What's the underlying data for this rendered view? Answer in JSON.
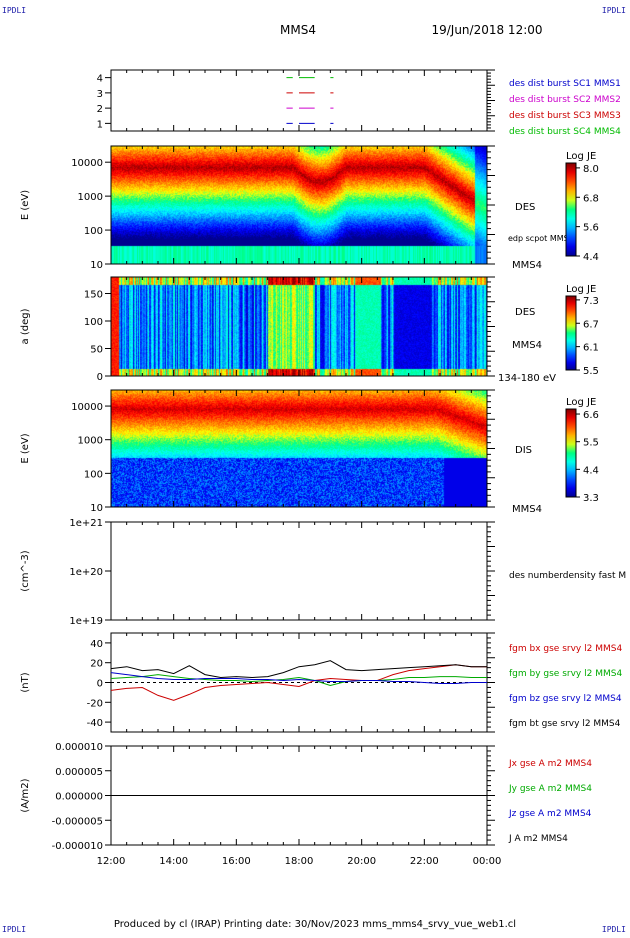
{
  "header": {
    "corner_left": "IPDLI",
    "corner_right": "IPDLI",
    "title": "MMS4",
    "date": "19/Jun/2018 12:00"
  },
  "footer": {
    "text": "Produced by cl (IRAP)   Printing date: 30/Nov/2023   mms_mms4_srvy_vue_web1.cl",
    "corner_left": "IPDLI",
    "corner_right": "IPDLI"
  },
  "x_axis": {
    "ticks": [
      "12:00",
      "14:00",
      "16:00",
      "18:00",
      "20:00",
      "22:00",
      "00:00"
    ],
    "start_hour": 12,
    "end_hour": 24
  },
  "colors": {
    "mms1": "#0000cc",
    "mms2": "#cc00cc",
    "mms3": "#cc0000",
    "mms4": "#00bb00",
    "bx": "#cc0000",
    "by": "#00aa00",
    "bz": "#0000cc",
    "bt": "#000000"
  },
  "chart_data": [
    {
      "type": "bar",
      "id": "burst",
      "yticks": [
        "4",
        "3",
        "2",
        "1"
      ],
      "ylim": [
        0.5,
        4.5
      ],
      "legend": [
        "des dist burst SC1 MMS1",
        "des dist burst SC2 MMS2",
        "des dist burst SC3 MMS3",
        "des dist burst SC4 MMS4"
      ],
      "series": [
        {
          "name": "des dist burst SC1 MMS1",
          "level": 1,
          "segments": [
            [
              17.6,
              17.8
            ],
            [
              18.0,
              18.5
            ],
            [
              19.0,
              19.1
            ]
          ]
        },
        {
          "name": "des dist burst SC2 MMS2",
          "level": 2,
          "segments": [
            [
              17.6,
              17.8
            ],
            [
              18.0,
              18.5
            ],
            [
              19.0,
              19.1
            ]
          ]
        },
        {
          "name": "des dist burst SC3 MMS3",
          "level": 3,
          "segments": [
            [
              17.6,
              17.8
            ],
            [
              18.0,
              18.5
            ],
            [
              19.0,
              19.1
            ]
          ]
        },
        {
          "name": "des dist burst SC4 MMS4",
          "level": 4,
          "segments": [
            [
              17.6,
              17.8
            ],
            [
              18.0,
              18.5
            ],
            [
              19.0,
              19.1
            ]
          ]
        }
      ]
    },
    {
      "type": "heatmap",
      "id": "des-energy",
      "ylabel": "E (eV)",
      "yscale": "log",
      "ylim": [
        10,
        30000
      ],
      "yticks": [
        "10000",
        "1000",
        "100",
        "10"
      ],
      "instrument": "DES",
      "label_low": "edp scpot MMS4",
      "spacecraft": "MMS4",
      "colorbar": {
        "title": "Log JE",
        "ticks": [
          "8.0",
          "6.8",
          "5.6",
          "4.4"
        ],
        "range": [
          4.4,
          8.2
        ]
      }
    },
    {
      "type": "heatmap",
      "id": "des-pitch",
      "ylabel": "a (deg)",
      "ylim": [
        0,
        180
      ],
      "yticks": [
        "150",
        "100",
        "50",
        "0"
      ],
      "instrument": "DES",
      "spacecraft": "MMS4",
      "energy_range": "134-180 eV",
      "colorbar": {
        "title": "Log JE",
        "ticks": [
          "7.3",
          "6.7",
          "6.1",
          "5.5"
        ],
        "range": [
          5.5,
          7.4
        ]
      }
    },
    {
      "type": "heatmap",
      "id": "dis-energy",
      "ylabel": "E (eV)",
      "yscale": "log",
      "ylim": [
        10,
        30000
      ],
      "yticks": [
        "10000",
        "1000",
        "100",
        "10"
      ],
      "instrument": "DIS",
      "spacecraft": "MMS4",
      "colorbar": {
        "title": "Log JE",
        "ticks": [
          "6.6",
          "5.5",
          "4.4",
          "3.3"
        ],
        "range": [
          3.3,
          6.8
        ]
      }
    },
    {
      "type": "line",
      "id": "density",
      "ylabel": "(cm^-3)",
      "yscale": "log",
      "ylim": [
        1e+19,
        1e+21
      ],
      "yticks": [
        "1e+21",
        "1e+20",
        "1e+19"
      ],
      "legend": [
        "des numberdensity fast M"
      ],
      "series": []
    },
    {
      "type": "line",
      "id": "fgm",
      "ylabel": "(nT)",
      "ylim": [
        -50,
        50
      ],
      "yticks": [
        "40",
        "20",
        "0",
        "-20",
        "-40"
      ],
      "legend": [
        "fgm bx gse srvy l2 MMS4",
        "fgm by gse srvy l2 MMS4",
        "fgm bz gse srvy l2 MMS4",
        "fgm bt gse srvy l2 MMS4"
      ],
      "x": [
        12.0,
        12.5,
        13.0,
        13.5,
        14.0,
        14.5,
        15.0,
        15.5,
        16.0,
        16.5,
        17.0,
        17.5,
        18.0,
        18.5,
        19.0,
        19.5,
        20.0,
        20.5,
        21.0,
        21.5,
        22.0,
        22.5,
        23.0,
        23.5,
        24.0
      ],
      "series": [
        {
          "name": "fgm bx gse srvy l2 MMS4",
          "values": [
            -8,
            -6,
            -5,
            -13,
            -18,
            -12,
            -5,
            -3,
            -2,
            -1,
            0,
            -2,
            -4,
            2,
            4,
            3,
            2,
            2,
            8,
            12,
            14,
            16,
            18,
            16,
            16
          ]
        },
        {
          "name": "fgm by gse srvy l2 MMS4",
          "values": [
            4,
            5,
            6,
            8,
            6,
            4,
            3,
            2,
            2,
            1,
            2,
            3,
            5,
            2,
            -3,
            1,
            2,
            2,
            3,
            5,
            5,
            6,
            6,
            5,
            5
          ]
        },
        {
          "name": "fgm bz gse srvy l2 MMS4",
          "values": [
            10,
            8,
            6,
            4,
            3,
            3,
            4,
            4,
            4,
            3,
            3,
            2,
            3,
            2,
            1,
            1,
            2,
            2,
            1,
            1,
            0,
            -1,
            -1,
            0,
            0
          ]
        },
        {
          "name": "fgm bt gse srvy l2 MMS4",
          "values": [
            14,
            16,
            12,
            13,
            9,
            17,
            8,
            5,
            6,
            5,
            6,
            10,
            16,
            18,
            22,
            13,
            12,
            13,
            14,
            15,
            16,
            17,
            18,
            16,
            16
          ]
        }
      ]
    },
    {
      "type": "line",
      "id": "current",
      "ylabel": "(A/m2)",
      "ylim": [
        -1e-05,
        1e-05
      ],
      "yticks": [
        "0.000010",
        "0.000005",
        "0.000000",
        "-0.000005",
        "-0.000010"
      ],
      "legend": [
        "Jx gse A m2 MMS4",
        "Jy gse A m2 MMS4",
        "Jz gse A m2 MMS4",
        "J A m2 MMS4"
      ],
      "x": [
        12,
        14,
        16,
        18,
        20,
        22,
        24
      ],
      "series": [
        {
          "name": "J A m2 MMS4",
          "values": [
            0,
            0,
            0,
            0,
            0,
            0,
            0
          ]
        }
      ]
    }
  ]
}
